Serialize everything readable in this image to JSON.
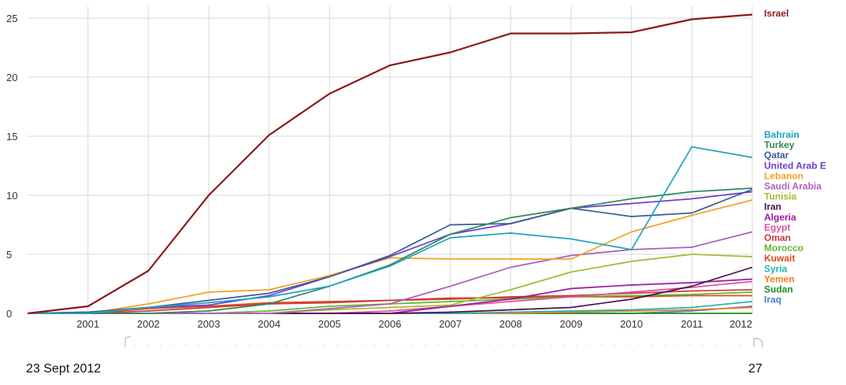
{
  "footer": {
    "date": "23 Sept 2012",
    "page": "27"
  },
  "chart_data": {
    "type": "line",
    "title": "",
    "xlabel": "",
    "ylabel": "",
    "x": [
      2000,
      2001,
      2002,
      2003,
      2004,
      2005,
      2006,
      2007,
      2008,
      2009,
      2010,
      2011,
      2012
    ],
    "x_tick_labels": [
      "2001",
      "2002",
      "2003",
      "2004",
      "2005",
      "2006",
      "2007",
      "2008",
      "2009",
      "2010",
      "2011",
      "2012"
    ],
    "y_ticks": [
      0,
      5,
      10,
      15,
      20,
      25
    ],
    "xlim": [
      2000,
      2012
    ],
    "ylim": [
      0,
      26
    ],
    "grid": true,
    "legend_position": "right, at line ends",
    "series": [
      {
        "name": "Israel",
        "color": "#8b1a1a",
        "values": [
          0,
          0.6,
          3.6,
          10,
          15.1,
          18.6,
          21,
          22.1,
          23.7,
          23.7,
          23.8,
          24.9,
          25.3
        ]
      },
      {
        "name": "Bahrain",
        "color": "#1fa1c0",
        "values": [
          0,
          0,
          0.5,
          0.9,
          1.4,
          2.3,
          4.0,
          6.4,
          6.8,
          6.3,
          5.4,
          14.1,
          13.2
        ]
      },
      {
        "name": "Turkey",
        "color": "#2e8b57",
        "values": [
          0,
          0,
          0,
          0.2,
          0.8,
          2.3,
          4.1,
          6.7,
          8.1,
          8.9,
          9.7,
          10.3,
          10.6
        ]
      },
      {
        "name": "Qatar",
        "color": "#3d5a99",
        "values": [
          0,
          0.1,
          0.5,
          1.1,
          1.7,
          3.1,
          4.9,
          7.5,
          7.6,
          8.9,
          8.2,
          8.5,
          10.5
        ]
      },
      {
        "name": "United Arab E",
        "color": "#6a3fd0",
        "values": [
          0,
          0.1,
          0.5,
          0.7,
          1.5,
          3.1,
          4.8,
          6.7,
          7.6,
          8.9,
          9.3,
          9.7,
          10.3
        ]
      },
      {
        "name": "Lebanon",
        "color": "#f4a024",
        "values": [
          0,
          0,
          0.8,
          1.8,
          2.0,
          3.2,
          4.7,
          4.6,
          4.6,
          4.6,
          6.9,
          8.3,
          9.6
        ]
      },
      {
        "name": "Saudi Arabia",
        "color": "#b05dbf",
        "values": [
          0,
          0,
          0,
          0,
          0,
          0.4,
          0.8,
          2.3,
          3.9,
          4.9,
          5.4,
          5.6,
          6.9
        ]
      },
      {
        "name": "Tunisia",
        "color": "#a8b830",
        "values": [
          0,
          0,
          0,
          0,
          0,
          0.3,
          0.5,
          0.7,
          2.0,
          3.5,
          4.4,
          5.0,
          4.8
        ]
      },
      {
        "name": "Iran",
        "color": "#4b0f4f",
        "values": [
          0,
          0,
          0,
          0,
          0,
          0,
          0,
          0.1,
          0.3,
          0.5,
          1.2,
          2.3,
          3.9
        ]
      },
      {
        "name": "Algeria",
        "color": "#9b1aa6",
        "values": [
          0,
          0,
          0,
          0,
          0,
          0,
          0,
          0.6,
          1.2,
          2.1,
          2.4,
          2.6,
          2.9
        ]
      },
      {
        "name": "Egypt",
        "color": "#e0509a",
        "values": [
          0,
          0,
          0,
          0,
          0,
          0,
          0.2,
          0.6,
          1.0,
          1.4,
          1.8,
          2.2,
          2.7
        ]
      },
      {
        "name": "Oman",
        "color": "#cc3b3b",
        "values": [
          0,
          0,
          0.2,
          0.5,
          0.8,
          0.9,
          1.1,
          1.2,
          1.4,
          1.5,
          1.7,
          1.9,
          2.0
        ]
      },
      {
        "name": "Morocco",
        "color": "#5cb82d",
        "values": [
          0,
          0,
          0,
          0,
          0.2,
          0.6,
          0.8,
          1.0,
          1.2,
          1.4,
          1.5,
          1.6,
          1.8
        ]
      },
      {
        "name": "Kuwait",
        "color": "#e04a1f",
        "values": [
          0,
          0,
          0.4,
          0.6,
          0.9,
          1.0,
          1.1,
          1.3,
          1.3,
          1.4,
          1.4,
          1.5,
          1.5
        ]
      },
      {
        "name": "Syria",
        "color": "#26b3b0",
        "values": [
          0,
          0,
          0,
          0,
          0,
          0,
          0,
          0,
          0.1,
          0.2,
          0.3,
          0.5,
          1.0
        ]
      },
      {
        "name": "Yemen",
        "color": "#f07d1a",
        "values": [
          0,
          0,
          0,
          0,
          0,
          0,
          0,
          0,
          0,
          0.1,
          0.2,
          0.3,
          0.5
        ]
      },
      {
        "name": "Sudan",
        "color": "#1f8f1f",
        "values": [
          0,
          0,
          0,
          0,
          0,
          0,
          0,
          0,
          0,
          0,
          0,
          0,
          0
        ]
      },
      {
        "name": "Iraq",
        "color": "#4a7cd6",
        "values": [
          0,
          0,
          0,
          0,
          0,
          0,
          0,
          0,
          0,
          0,
          0,
          0.2,
          0.6
        ]
      }
    ]
  }
}
